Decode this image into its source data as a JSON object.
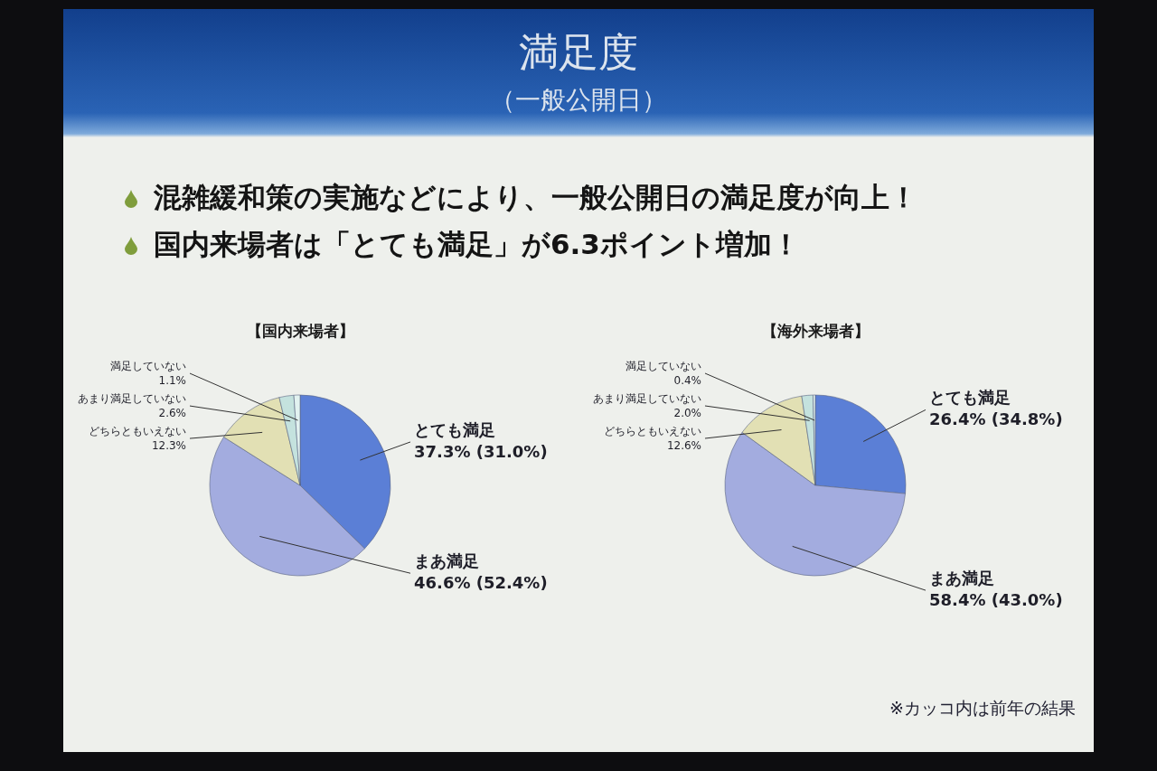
{
  "chart_data": [
    {
      "type": "other",
      "title": "満足度",
      "subtitle": "（一般公開日）",
      "annotations": [
        "混雑緩和策の実施などにより、一般公開日の満足度が向上！",
        "国内来場者は「とても満足」が6.3ポイント増加！"
      ]
    },
    {
      "type": "pie",
      "title": "【国内来場者】",
      "categories": [
        "とても満足",
        "まあ満足",
        "どちらともいえない",
        "あまり満足していない",
        "満足していない"
      ],
      "values": [
        37.3,
        46.6,
        12.3,
        2.6,
        1.1
      ],
      "colors": [
        "#5b7fd6",
        "#a3acdf",
        "#e2e0b4",
        "#c4e2de",
        "#e2f2f0"
      ],
      "value_labels": [
        "37.3% (31.0%)",
        "46.6% (52.4%)",
        "12.3%",
        "2.6%",
        "1.1%"
      ]
    },
    {
      "type": "pie",
      "title": "【海外来場者】",
      "categories": [
        "とても満足",
        "まあ満足",
        "どちらともいえない",
        "あまり満足していない",
        "満足していない"
      ],
      "values": [
        26.4,
        58.4,
        12.6,
        2.0,
        0.4
      ],
      "colors": [
        "#5b7fd6",
        "#a3acdf",
        "#e2e0b4",
        "#c4e2de",
        "#e2f2f0"
      ],
      "value_labels": [
        "26.4% (34.8%)",
        "58.4% (43.0%)",
        "12.6%",
        "2.0%",
        "0.4%"
      ],
      "annotations": [
        "※カッコ内は前年の結果"
      ]
    }
  ]
}
